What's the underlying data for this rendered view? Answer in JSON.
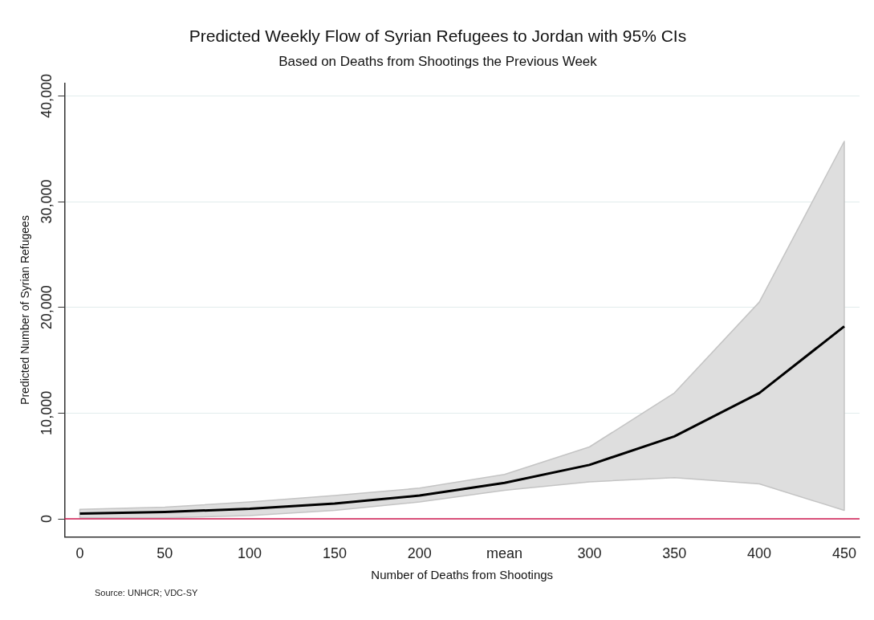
{
  "chart_data": {
    "type": "line",
    "title": "Predicted Weekly Flow of Syrian Refugees to Jordan with 95% CIs",
    "subtitle": "Based on Deaths from Shootings the Previous Week",
    "xlabel": "Number of Deaths from Shootings",
    "ylabel": "Predicted Number of Syrian Refugees",
    "x": [
      0,
      50,
      100,
      150,
      200,
      250,
      300,
      350,
      400,
      450
    ],
    "series": [
      {
        "color": "#000000",
        "values": [
          500,
          650,
          950,
          1450,
          2200,
          3400,
          5100,
          7800,
          11900,
          18200
        ],
        "lower": [
          100,
          100,
          300,
          800,
          1600,
          2700,
          3500,
          3900,
          3300,
          800
        ],
        "upper": [
          900,
          1100,
          1600,
          2200,
          2900,
          4200,
          6800,
          11900,
          20500,
          35700
        ]
      }
    ],
    "xlim": [
      -9,
      459
    ],
    "xticks": [
      0,
      50,
      100,
      150,
      200,
      {
        "value": 250,
        "label": "mean"
      },
      300,
      350,
      400,
      450
    ],
    "ylim": [
      -1700,
      41200
    ],
    "yticks": [
      {
        "value": 0,
        "label": "0"
      },
      {
        "value": 10000,
        "label": "10,000"
      },
      {
        "value": 20000,
        "label": "20,000"
      },
      {
        "value": 30000,
        "label": "30,000"
      },
      {
        "value": 40000,
        "label": "40,000"
      }
    ],
    "grid": "y",
    "legend": false,
    "marker": "none",
    "line_style": "solid",
    "ref_lines": [
      {
        "axis": "y",
        "value": 0,
        "color": "#d01850"
      }
    ],
    "annotations": [
      "Source: UNHCR; VDC-SY"
    ]
  }
}
